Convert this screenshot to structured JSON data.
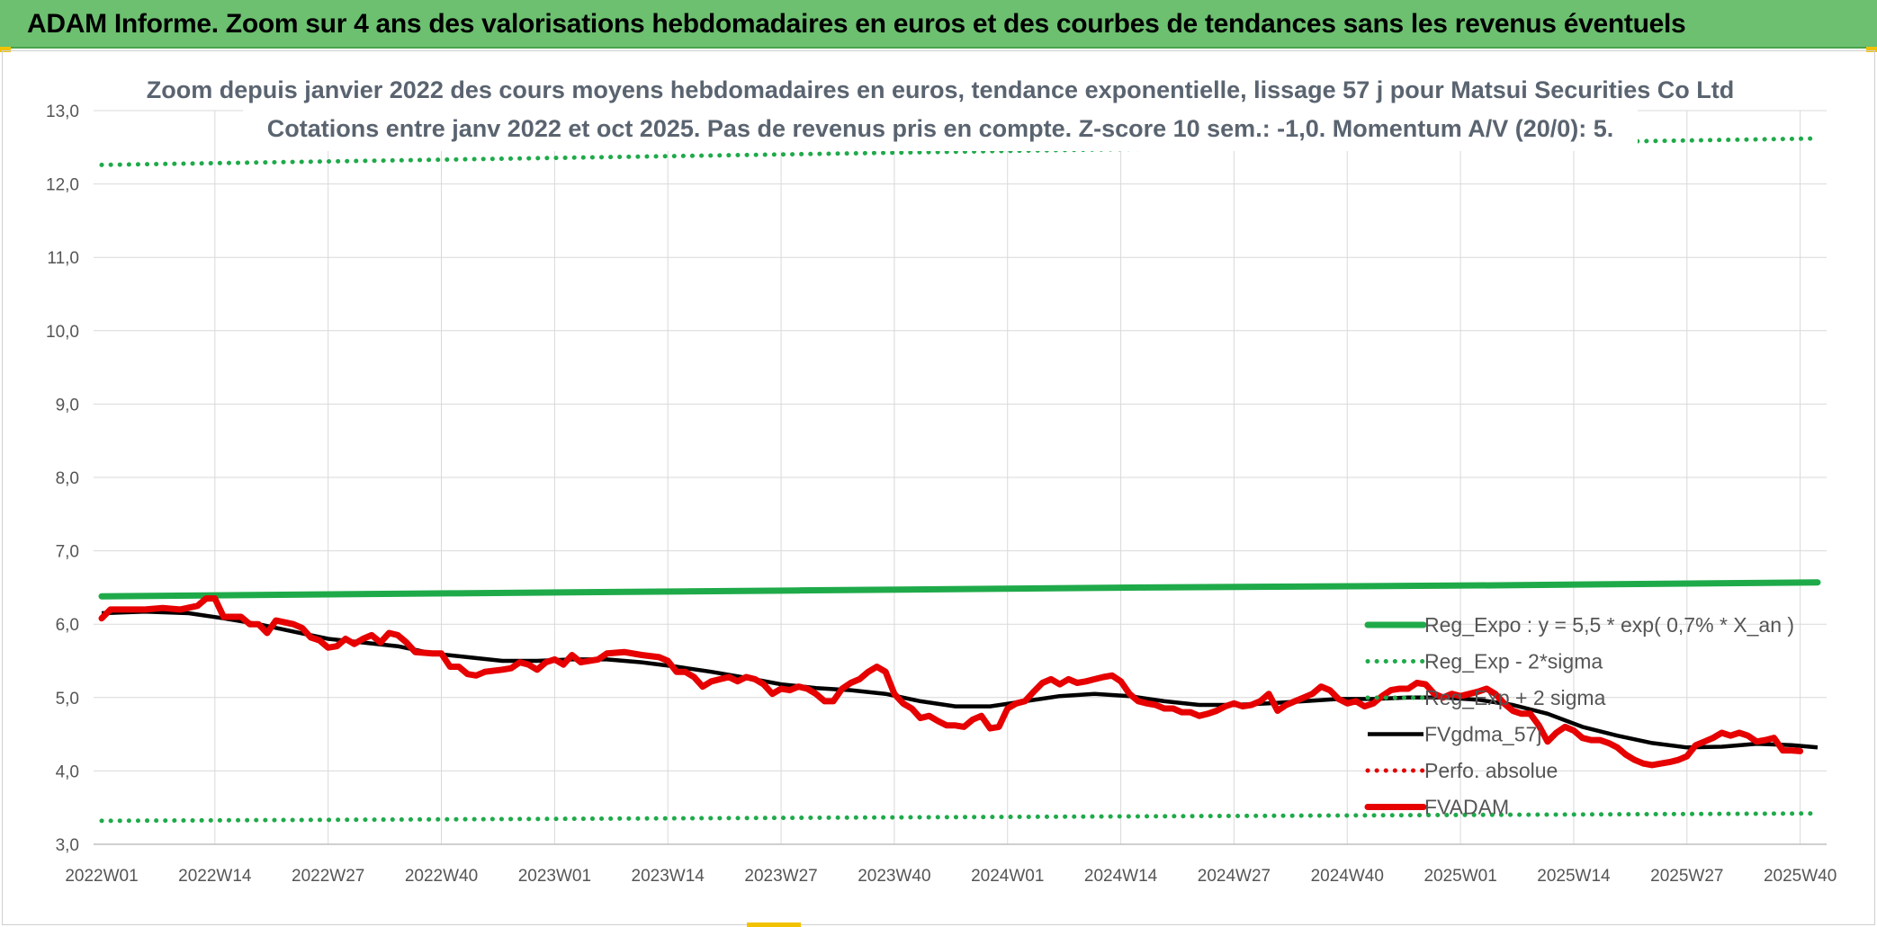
{
  "banner": {
    "title": "ADAM Informe. Zoom sur 4 ans des valorisations hebdomadaires en euros et des courbes de tendances sans les revenus éventuels"
  },
  "chart_data": {
    "type": "line",
    "title": "Zoom depuis janvier 2022 des cours moyens hebdomadaires en euros, tendance exponentielle, lissage 57 j pour Matsui Securities Co Ltd",
    "subtitle": "Cotations entre janv 2022 et oct 2025. Pas de revenus pris en compte. Z-score 10 sem.: -1,0. Momentum A/V (20/0): 5.",
    "ylim": [
      3.0,
      13.0
    ],
    "yticks": [
      "3,0",
      "4,0",
      "5,0",
      "6,0",
      "7,0",
      "8,0",
      "9,0",
      "10,0",
      "11,0",
      "12,0",
      "13,0"
    ],
    "xlim": [
      0,
      197
    ],
    "xticks": [
      {
        "label": "2022W01",
        "x": 0
      },
      {
        "label": "2022W14",
        "x": 13
      },
      {
        "label": "2022W27",
        "x": 26
      },
      {
        "label": "2022W40",
        "x": 39
      },
      {
        "label": "2023W01",
        "x": 52
      },
      {
        "label": "2023W14",
        "x": 65
      },
      {
        "label": "2023W27",
        "x": 78
      },
      {
        "label": "2023W40",
        "x": 91
      },
      {
        "label": "2024W01",
        "x": 104
      },
      {
        "label": "2024W14",
        "x": 117
      },
      {
        "label": "2024W27",
        "x": 130
      },
      {
        "label": "2024W40",
        "x": 143
      },
      {
        "label": "2025W01",
        "x": 156
      },
      {
        "label": "2025W14",
        "x": 169
      },
      {
        "label": "2025W27",
        "x": 182
      },
      {
        "label": "2025W40",
        "x": 195
      }
    ],
    "grid": true,
    "legend_position": "bottom-right",
    "legend": [
      "Reg_Expo : y = 5,5 * exp( 0,7% *  X_an )",
      "Reg_Exp - 2*sigma",
      "Reg_Exp + 2 sigma",
      "FVgdma_57j",
      "Perfo. absolue",
      "FVADAM"
    ],
    "series": [
      {
        "name": "Reg_Expo : y = 5,5 * exp( 0,7% *  X_an )",
        "style": "solid-thick",
        "color": "#1faa4a",
        "points": [
          [
            0,
            6.38
          ],
          [
            40,
            6.42
          ],
          [
            80,
            6.46
          ],
          [
            120,
            6.5
          ],
          [
            160,
            6.53
          ],
          [
            197,
            6.57
          ]
        ]
      },
      {
        "name": "Reg_Exp - 2*sigma",
        "style": "dotted",
        "color": "#1faa4a",
        "points": [
          [
            0,
            3.32
          ],
          [
            197,
            3.42
          ]
        ]
      },
      {
        "name": "Reg_Exp + 2 sigma",
        "style": "dotted",
        "color": "#1faa4a",
        "points": [
          [
            0,
            12.26
          ],
          [
            197,
            12.62
          ]
        ]
      },
      {
        "name": "FVgdma_57j",
        "style": "solid-medium",
        "color": "#000000",
        "points": [
          [
            0,
            6.15
          ],
          [
            5,
            6.17
          ],
          [
            10,
            6.15
          ],
          [
            14,
            6.08
          ],
          [
            18,
            6.0
          ],
          [
            22,
            5.9
          ],
          [
            26,
            5.8
          ],
          [
            30,
            5.75
          ],
          [
            34,
            5.7
          ],
          [
            38,
            5.6
          ],
          [
            42,
            5.55
          ],
          [
            46,
            5.5
          ],
          [
            50,
            5.5
          ],
          [
            54,
            5.52
          ],
          [
            58,
            5.52
          ],
          [
            62,
            5.48
          ],
          [
            66,
            5.42
          ],
          [
            70,
            5.35
          ],
          [
            74,
            5.27
          ],
          [
            78,
            5.18
          ],
          [
            82,
            5.13
          ],
          [
            86,
            5.1
          ],
          [
            90,
            5.05
          ],
          [
            94,
            4.95
          ],
          [
            98,
            4.88
          ],
          [
            102,
            4.88
          ],
          [
            106,
            4.95
          ],
          [
            110,
            5.02
          ],
          [
            114,
            5.05
          ],
          [
            118,
            5.02
          ],
          [
            122,
            4.95
          ],
          [
            126,
            4.9
          ],
          [
            130,
            4.9
          ],
          [
            134,
            4.92
          ],
          [
            138,
            4.95
          ],
          [
            142,
            4.98
          ],
          [
            146,
            4.98
          ],
          [
            150,
            5.0
          ],
          [
            154,
            5.0
          ],
          [
            158,
            4.97
          ],
          [
            162,
            4.9
          ],
          [
            166,
            4.78
          ],
          [
            170,
            4.6
          ],
          [
            174,
            4.48
          ],
          [
            178,
            4.38
          ],
          [
            182,
            4.32
          ],
          [
            186,
            4.33
          ],
          [
            190,
            4.37
          ],
          [
            194,
            4.35
          ],
          [
            197,
            4.32
          ]
        ]
      },
      {
        "name": "Perfo. absolue",
        "style": "dotted",
        "color": "#e00000",
        "points": []
      },
      {
        "name": "FVADAM",
        "style": "solid-thick",
        "color": "#e60000",
        "points": [
          [
            0,
            6.08
          ],
          [
            1,
            6.2
          ],
          [
            3,
            6.2
          ],
          [
            5,
            6.2
          ],
          [
            7,
            6.22
          ],
          [
            9,
            6.2
          ],
          [
            11,
            6.25
          ],
          [
            12,
            6.35
          ],
          [
            13,
            6.35
          ],
          [
            14,
            6.1
          ],
          [
            16,
            6.1
          ],
          [
            17,
            6.0
          ],
          [
            18,
            6.0
          ],
          [
            19,
            5.88
          ],
          [
            20,
            6.05
          ],
          [
            22,
            6.0
          ],
          [
            23,
            5.95
          ],
          [
            24,
            5.82
          ],
          [
            25,
            5.78
          ],
          [
            26,
            5.68
          ],
          [
            27,
            5.7
          ],
          [
            28,
            5.8
          ],
          [
            29,
            5.73
          ],
          [
            30,
            5.8
          ],
          [
            31,
            5.85
          ],
          [
            32,
            5.75
          ],
          [
            33,
            5.88
          ],
          [
            34,
            5.85
          ],
          [
            35,
            5.75
          ],
          [
            36,
            5.62
          ],
          [
            38,
            5.6
          ],
          [
            39,
            5.6
          ],
          [
            40,
            5.42
          ],
          [
            41,
            5.42
          ],
          [
            42,
            5.32
          ],
          [
            43,
            5.3
          ],
          [
            44,
            5.35
          ],
          [
            46,
            5.38
          ],
          [
            47,
            5.4
          ],
          [
            48,
            5.48
          ],
          [
            49,
            5.45
          ],
          [
            50,
            5.38
          ],
          [
            51,
            5.48
          ],
          [
            52,
            5.52
          ],
          [
            53,
            5.45
          ],
          [
            54,
            5.58
          ],
          [
            55,
            5.48
          ],
          [
            57,
            5.52
          ],
          [
            58,
            5.6
          ],
          [
            60,
            5.62
          ],
          [
            62,
            5.58
          ],
          [
            64,
            5.55
          ],
          [
            65,
            5.5
          ],
          [
            66,
            5.35
          ],
          [
            67,
            5.35
          ],
          [
            68,
            5.28
          ],
          [
            69,
            5.15
          ],
          [
            70,
            5.22
          ],
          [
            71,
            5.25
          ],
          [
            72,
            5.28
          ],
          [
            73,
            5.22
          ],
          [
            74,
            5.28
          ],
          [
            75,
            5.25
          ],
          [
            76,
            5.18
          ],
          [
            77,
            5.05
          ],
          [
            78,
            5.12
          ],
          [
            79,
            5.1
          ],
          [
            80,
            5.15
          ],
          [
            81,
            5.12
          ],
          [
            82,
            5.05
          ],
          [
            83,
            4.95
          ],
          [
            84,
            4.95
          ],
          [
            85,
            5.12
          ],
          [
            86,
            5.2
          ],
          [
            87,
            5.25
          ],
          [
            88,
            5.35
          ],
          [
            89,
            5.42
          ],
          [
            90,
            5.35
          ],
          [
            91,
            5.05
          ],
          [
            92,
            4.92
          ],
          [
            93,
            4.85
          ],
          [
            94,
            4.72
          ],
          [
            95,
            4.75
          ],
          [
            96,
            4.68
          ],
          [
            97,
            4.62
          ],
          [
            98,
            4.62
          ],
          [
            99,
            4.6
          ],
          [
            100,
            4.7
          ],
          [
            101,
            4.75
          ],
          [
            102,
            4.58
          ],
          [
            103,
            4.6
          ],
          [
            104,
            4.85
          ],
          [
            105,
            4.92
          ],
          [
            106,
            4.95
          ],
          [
            107,
            5.08
          ],
          [
            108,
            5.2
          ],
          [
            109,
            5.25
          ],
          [
            110,
            5.18
          ],
          [
            111,
            5.25
          ],
          [
            112,
            5.2
          ],
          [
            113,
            5.22
          ],
          [
            114,
            5.25
          ],
          [
            115,
            5.28
          ],
          [
            116,
            5.3
          ],
          [
            117,
            5.22
          ],
          [
            118,
            5.05
          ],
          [
            119,
            4.95
          ],
          [
            120,
            4.92
          ],
          [
            121,
            4.9
          ],
          [
            122,
            4.85
          ],
          [
            123,
            4.85
          ],
          [
            124,
            4.8
          ],
          [
            125,
            4.8
          ],
          [
            126,
            4.75
          ],
          [
            127,
            4.78
          ],
          [
            128,
            4.82
          ],
          [
            129,
            4.88
          ],
          [
            130,
            4.92
          ],
          [
            131,
            4.88
          ],
          [
            132,
            4.9
          ],
          [
            133,
            4.95
          ],
          [
            134,
            5.05
          ],
          [
            135,
            4.82
          ],
          [
            136,
            4.9
          ],
          [
            137,
            4.95
          ],
          [
            138,
            5.0
          ],
          [
            139,
            5.05
          ],
          [
            140,
            5.15
          ],
          [
            141,
            5.1
          ],
          [
            142,
            4.98
          ],
          [
            143,
            4.92
          ],
          [
            144,
            4.95
          ],
          [
            145,
            4.88
          ],
          [
            146,
            4.92
          ],
          [
            147,
            5.02
          ],
          [
            148,
            5.1
          ],
          [
            149,
            5.12
          ],
          [
            150,
            5.12
          ],
          [
            151,
            5.2
          ],
          [
            152,
            5.18
          ],
          [
            153,
            5.05
          ],
          [
            154,
            5.0
          ],
          [
            155,
            5.05
          ],
          [
            156,
            5.02
          ],
          [
            158,
            5.08
          ],
          [
            159,
            5.12
          ],
          [
            160,
            5.05
          ],
          [
            161,
            4.92
          ],
          [
            162,
            4.82
          ],
          [
            163,
            4.78
          ],
          [
            164,
            4.78
          ],
          [
            165,
            4.62
          ],
          [
            166,
            4.4
          ],
          [
            167,
            4.52
          ],
          [
            168,
            4.6
          ],
          [
            169,
            4.55
          ],
          [
            170,
            4.45
          ],
          [
            171,
            4.42
          ],
          [
            172,
            4.42
          ],
          [
            173,
            4.38
          ],
          [
            174,
            4.32
          ],
          [
            175,
            4.22
          ],
          [
            176,
            4.15
          ],
          [
            177,
            4.1
          ],
          [
            178,
            4.08
          ],
          [
            179,
            4.1
          ],
          [
            180,
            4.12
          ],
          [
            181,
            4.15
          ],
          [
            182,
            4.2
          ],
          [
            183,
            4.35
          ],
          [
            184,
            4.4
          ],
          [
            185,
            4.45
          ],
          [
            186,
            4.52
          ],
          [
            187,
            4.48
          ],
          [
            188,
            4.52
          ],
          [
            189,
            4.48
          ],
          [
            190,
            4.4
          ],
          [
            191,
            4.42
          ],
          [
            192,
            4.45
          ],
          [
            193,
            4.28
          ],
          [
            194,
            4.28
          ],
          [
            195,
            4.27
          ]
        ]
      }
    ]
  }
}
